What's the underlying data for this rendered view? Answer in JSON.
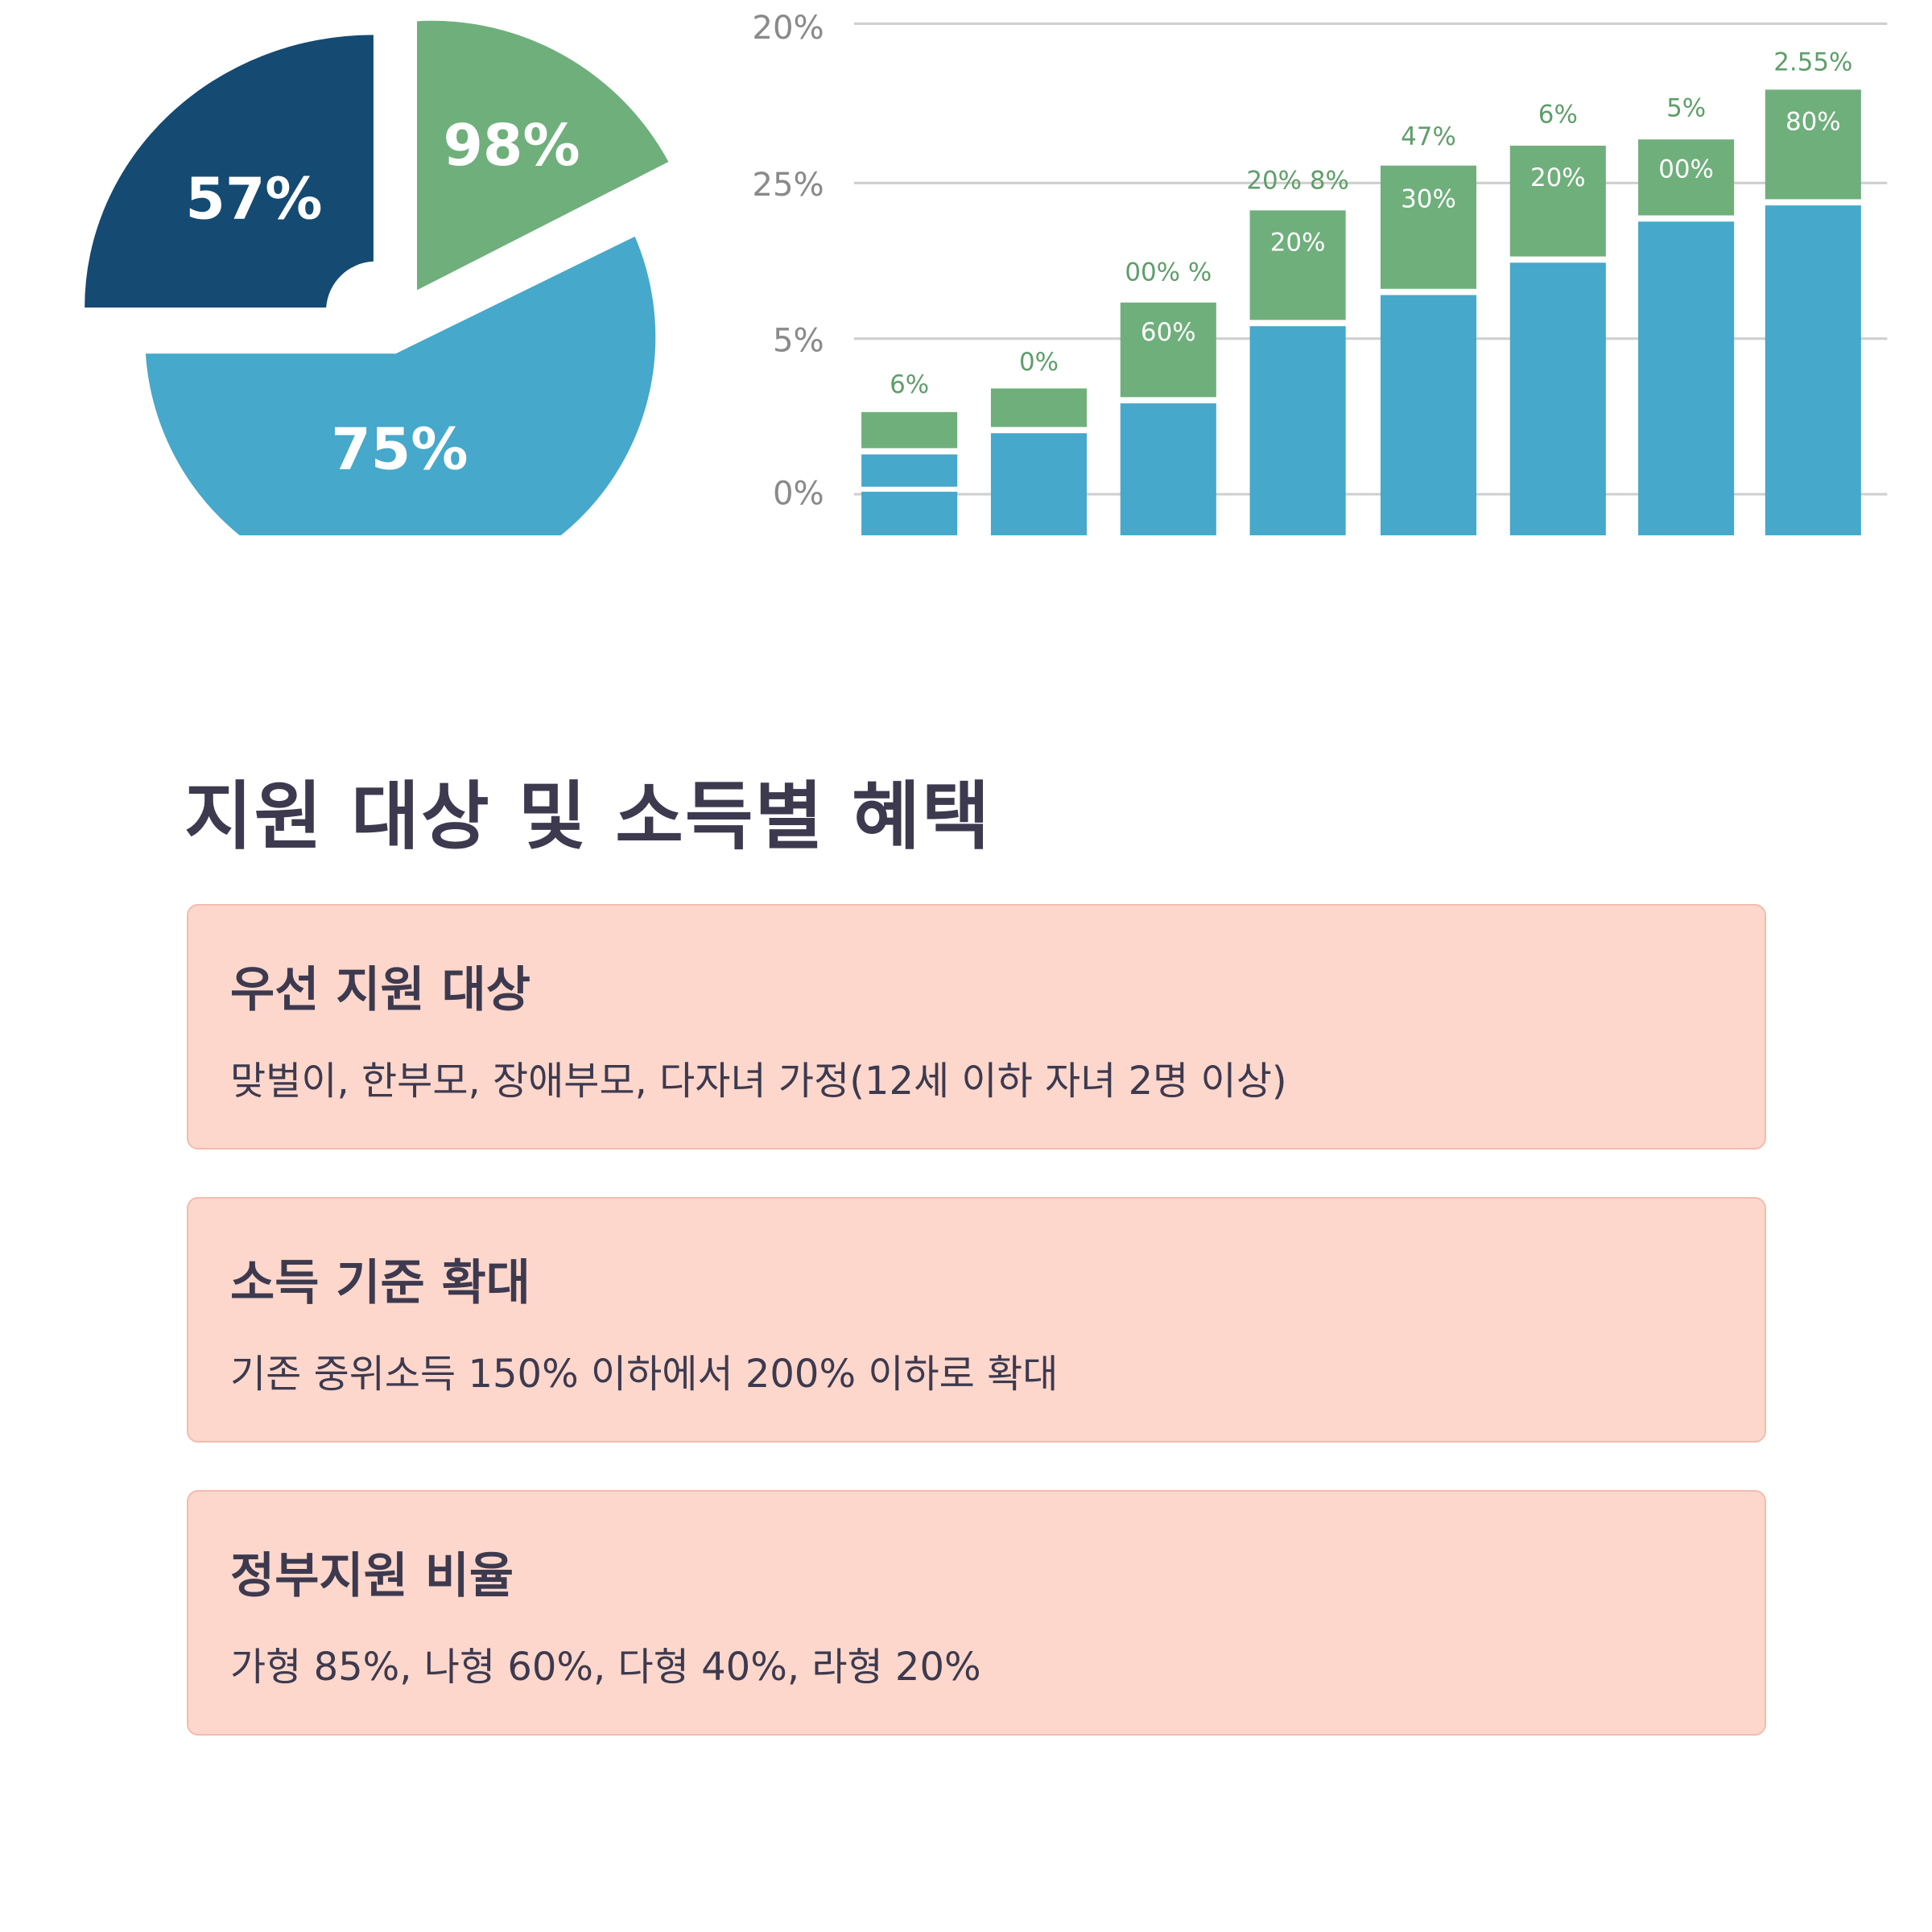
{
  "image": {
    "pie_labels": [
      "57%",
      "98%",
      "75%"
    ],
    "axis_labels": [
      "20%",
      "25%",
      "5%",
      "0%"
    ],
    "bar_top_labels": [
      "6%",
      "0%",
      "00% %",
      "20% 8%",
      "47%",
      "6%",
      "5%",
      "2.55%"
    ],
    "bar_inner_labels": [
      "60%",
      "20%",
      "30%",
      "20%",
      "00%",
      "80%"
    ]
  },
  "section": {
    "title": "지원 대상 및 소득별 혜택",
    "cards": [
      {
        "title": "우선 지원 대상",
        "text": "맞벌이, 한부모, 장애부모, 다자녀 가정(12세 이하 자녀 2명 이상)"
      },
      {
        "title": "소득 기준 확대",
        "text": "기존 중위소득 150% 이하에서 200% 이하로 확대"
      },
      {
        "title": "정부지원 비율",
        "text": "가형 85%, 나형 60%, 다형 40%, 라형 20%"
      }
    ]
  }
}
